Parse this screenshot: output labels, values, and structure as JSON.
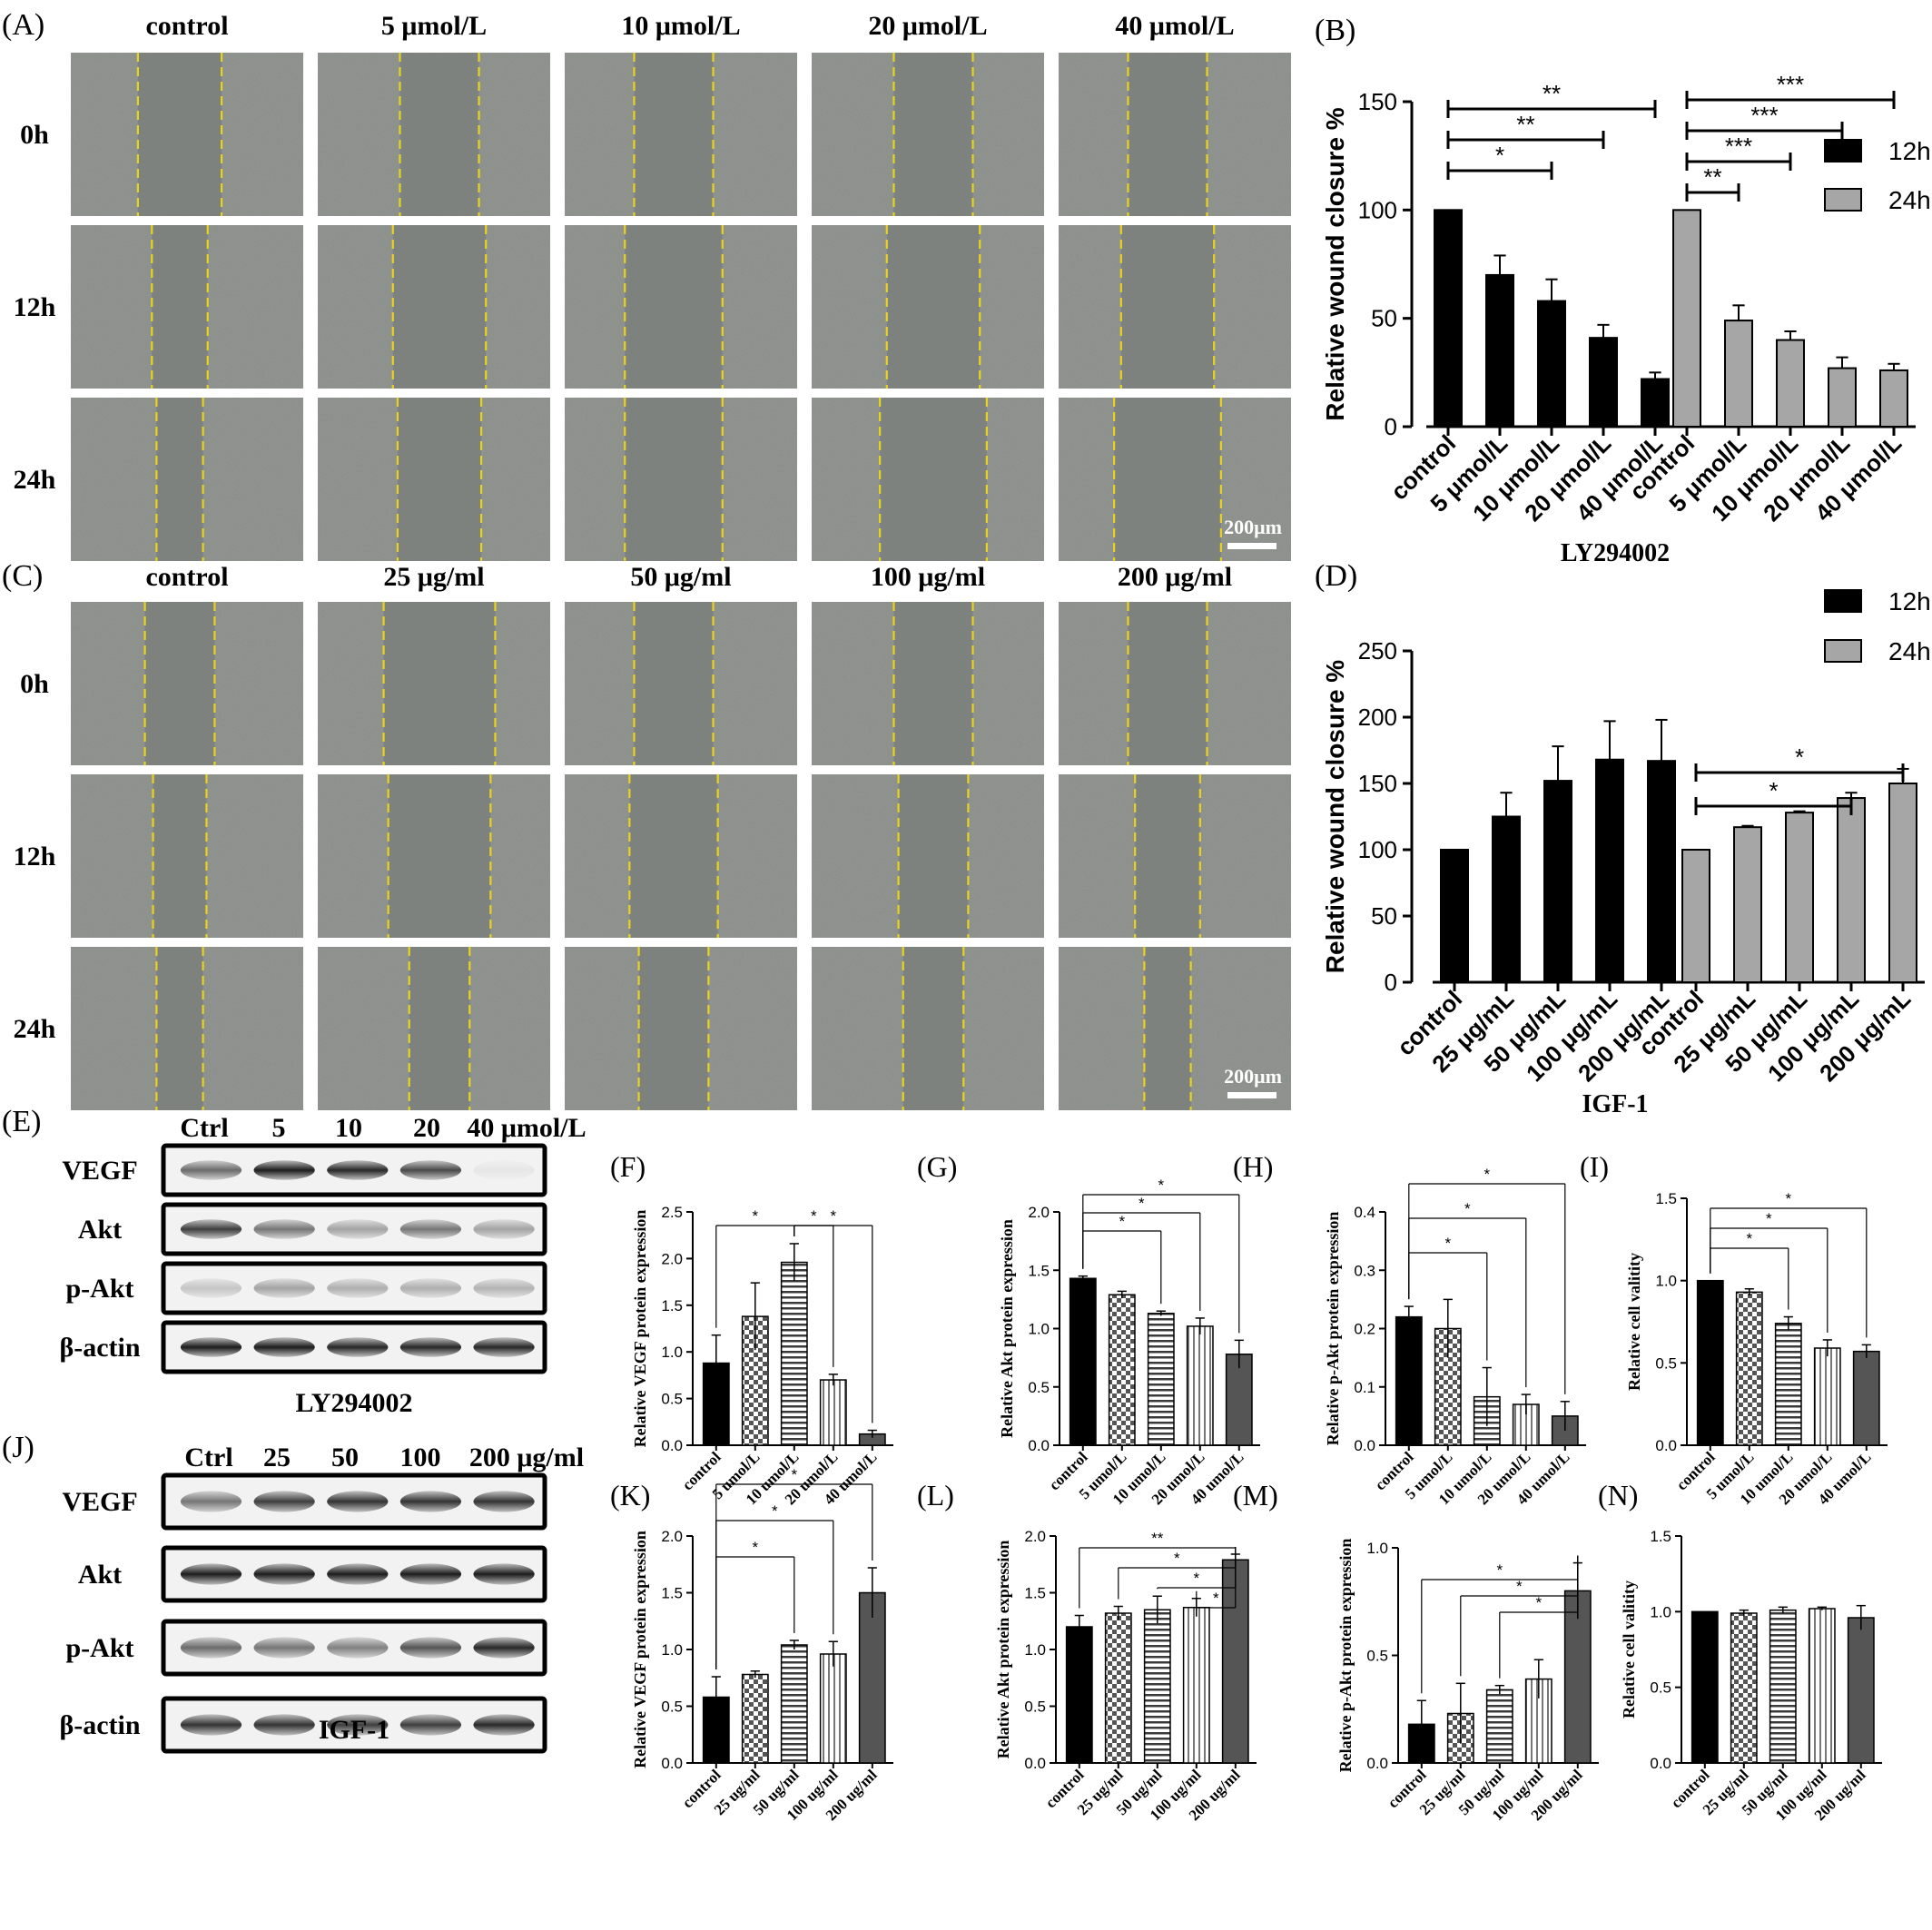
{
  "panel_letters": {
    "A": "(A)",
    "B": "(B)",
    "C": "(C)",
    "D": "(D)",
    "E": "(E)",
    "F": "(F)",
    "G": "(G)",
    "H": "(H)",
    "I": "(I)",
    "J": "(J)",
    "K": "(K)",
    "L": "(L)",
    "M": "(M)",
    "N": "(N)"
  },
  "micrograph_grids": [
    {
      "id": "A",
      "columns": [
        "control",
        "5 μmol/L",
        "10 μmol/L",
        "20 μmol/L",
        "40 μmol/L"
      ],
      "rows": [
        "0h",
        "12h",
        "24h"
      ],
      "scale_bar": "200μm"
    },
    {
      "id": "C",
      "columns": [
        "control",
        "25 μg/ml",
        "50 μg/ml",
        "100 μg/ml",
        "200 μg/ml"
      ],
      "rows": [
        "0h",
        "12h",
        "24h"
      ],
      "scale_bar": "200μm"
    }
  ],
  "blots": [
    {
      "id": "E",
      "columns": [
        "Ctrl",
        "5",
        "10",
        "20",
        "40 μmol/L"
      ],
      "rows": [
        "VEGF",
        "Akt",
        "p-Akt",
        "β-actin"
      ],
      "caption": "LY294002"
    },
    {
      "id": "J",
      "columns": [
        "Ctrl",
        "25",
        "50",
        "100",
        "200 μg/ml"
      ],
      "rows": [
        "VEGF",
        "Akt",
        "p-Akt",
        "β-actin"
      ],
      "caption": "IGF-1"
    }
  ],
  "chart_data": [
    {
      "id": "B",
      "type": "bar",
      "ylabel": "Relative wound closure %",
      "xlabel": "LY294002",
      "ylim": [
        0,
        150
      ],
      "yticks": [
        "0",
        "50",
        "100",
        "150"
      ],
      "categories": [
        "control",
        "5 μmol/L",
        "10 μmol/L",
        "20 μmol/L",
        "40 μmol/L"
      ],
      "legend": {
        "placement": "right",
        "entries": [
          "12h",
          "24h"
        ]
      },
      "series": [
        {
          "name": "12h",
          "color": "#000000",
          "values": [
            100,
            70,
            58,
            41,
            22
          ],
          "errors": [
            0,
            9,
            10,
            6,
            3
          ]
        },
        {
          "name": "24h",
          "color": "#a6a6a6",
          "values": [
            100,
            49,
            40,
            27,
            26
          ],
          "errors": [
            0,
            7,
            4,
            5,
            3
          ]
        }
      ],
      "significance": [
        {
          "series": "12h",
          "from": "control",
          "to": "10 μmol/L",
          "label": "*"
        },
        {
          "series": "12h",
          "from": "control",
          "to": "20 μmol/L",
          "label": "**"
        },
        {
          "series": "12h",
          "from": "control",
          "to": "40 μmol/L",
          "label": "**"
        },
        {
          "series": "24h",
          "from": "control",
          "to": "5 μmol/L",
          "label": "**"
        },
        {
          "series": "24h",
          "from": "control",
          "to": "10 μmol/L",
          "label": "***"
        },
        {
          "series": "24h",
          "from": "control",
          "to": "20 μmol/L",
          "label": "***"
        },
        {
          "series": "24h",
          "from": "control",
          "to": "40 μmol/L",
          "label": "***"
        }
      ]
    },
    {
      "id": "D",
      "type": "bar",
      "ylabel": "Relative wound closure %",
      "xlabel": "IGF-1",
      "ylim": [
        0,
        250
      ],
      "yticks": [
        "0",
        "50",
        "100",
        "150",
        "200",
        "250"
      ],
      "categories": [
        "control",
        "25 μg/mL",
        "50 μg/mL",
        "100 μg/mL",
        "200 μg/mL"
      ],
      "legend": {
        "placement": "top-right",
        "entries": [
          "12h",
          "24h"
        ]
      },
      "series": [
        {
          "name": "12h",
          "color": "#000000",
          "values": [
            100,
            125,
            152,
            168,
            167
          ],
          "errors": [
            0,
            18,
            26,
            29,
            31
          ]
        },
        {
          "name": "24h",
          "color": "#a6a6a6",
          "values": [
            100,
            117,
            128,
            139,
            150
          ],
          "errors": [
            0,
            1,
            1,
            4,
            11
          ]
        }
      ],
      "significance": [
        {
          "series": "24h",
          "from": "control",
          "to": "100 μg/mL",
          "label": "*"
        },
        {
          "series": "24h",
          "from": "control",
          "to": "200 μg/mL",
          "label": "*"
        }
      ]
    },
    {
      "id": "F",
      "type": "bar",
      "ylabel": "Relative VEGF protein expression",
      "ylim": [
        0,
        2.5
      ],
      "yticks": [
        "0.0",
        "0.5",
        "1.0",
        "1.5",
        "2.0",
        "2.5"
      ],
      "categories": [
        "control",
        "5 umol/L",
        "10 umol/L",
        "20 umol/L",
        "40 umol/L"
      ],
      "values": [
        0.88,
        1.38,
        1.96,
        0.7,
        0.12
      ],
      "errors": [
        0.3,
        0.36,
        0.2,
        0.06,
        0.04
      ],
      "significance": [
        {
          "from": "control",
          "to": "10 umol/L",
          "label": "*"
        },
        {
          "from": "10 umol/L",
          "to": "20 umol/L",
          "label": "*"
        },
        {
          "from": "10 umol/L",
          "to": "40 umol/L",
          "label": "*"
        }
      ]
    },
    {
      "id": "G",
      "type": "bar",
      "ylabel": "Relative Akt protein expression",
      "ylim": [
        0,
        2.0
      ],
      "yticks": [
        "0.0",
        "0.5",
        "1.0",
        "1.5",
        "2.0"
      ],
      "categories": [
        "control",
        "5 umol/L",
        "10 umol/L",
        "20 umol/L",
        "40 umol/L"
      ],
      "values": [
        1.43,
        1.29,
        1.13,
        1.02,
        0.78
      ],
      "errors": [
        0.02,
        0.03,
        0.02,
        0.07,
        0.12
      ],
      "significance": [
        {
          "from": "control",
          "to": "10 umol/L",
          "label": "*"
        },
        {
          "from": "control",
          "to": "20 umol/L",
          "label": "*"
        },
        {
          "from": "control",
          "to": "40 umol/L",
          "label": "*"
        }
      ]
    },
    {
      "id": "H",
      "type": "bar",
      "ylabel": "Relative p-Akt protein expression",
      "ylim": [
        0,
        0.4
      ],
      "yticks": [
        "0.0",
        "0.1",
        "0.2",
        "0.3",
        "0.4"
      ],
      "categories": [
        "control",
        "5 umol/L",
        "10 umol/L",
        "20 umol/L",
        "40 umol/L"
      ],
      "values": [
        0.22,
        0.2,
        0.083,
        0.07,
        0.05
      ],
      "errors": [
        0.018,
        0.05,
        0.05,
        0.017,
        0.025
      ],
      "significance": [
        {
          "from": "control",
          "to": "10 umol/L",
          "label": "*"
        },
        {
          "from": "control",
          "to": "20 umol/L",
          "label": "*"
        },
        {
          "from": "control",
          "to": "40 umol/L",
          "label": "*"
        }
      ]
    },
    {
      "id": "I",
      "type": "bar",
      "ylabel": "Relative cell valitity",
      "ylim": [
        0,
        1.5
      ],
      "yticks": [
        "0.0",
        "0.5",
        "1.0",
        "1.5"
      ],
      "categories": [
        "control",
        "5 umol/L",
        "10 umol/L",
        "20 umol/L",
        "40 umol/L"
      ],
      "values": [
        1.0,
        0.93,
        0.74,
        0.59,
        0.57
      ],
      "errors": [
        0,
        0.02,
        0.04,
        0.05,
        0.04
      ],
      "significance": [
        {
          "from": "control",
          "to": "10 umol/L",
          "label": "*"
        },
        {
          "from": "control",
          "to": "20 umol/L",
          "label": "*"
        },
        {
          "from": "control",
          "to": "40 umol/L",
          "label": "*"
        }
      ]
    },
    {
      "id": "K",
      "type": "bar",
      "ylabel": "Relative VEGF protein expression",
      "ylim": [
        0,
        2.0
      ],
      "yticks": [
        "0.0",
        "0.5",
        "1.0",
        "1.5",
        "2.0"
      ],
      "categories": [
        "control",
        "25 ug/ml",
        "50 ug/ml",
        "100 ug/ml",
        "200 ug/ml"
      ],
      "values": [
        0.58,
        0.78,
        1.04,
        0.96,
        1.5
      ],
      "errors": [
        0.18,
        0.03,
        0.04,
        0.11,
        0.22
      ],
      "significance": [
        {
          "from": "control",
          "to": "50 ug/ml",
          "label": "*"
        },
        {
          "from": "control",
          "to": "100 ug/ml",
          "label": "*"
        },
        {
          "from": "control",
          "to": "200 ug/ml",
          "label": "*"
        }
      ]
    },
    {
      "id": "L",
      "type": "bar",
      "ylabel": "Relative Akt protein expression",
      "ylim": [
        0,
        2.0
      ],
      "yticks": [
        "0.0",
        "0.5",
        "1.0",
        "1.5",
        "2.0"
      ],
      "categories": [
        "control",
        "25 ug/ml",
        "50 ug/ml",
        "100 ug/ml",
        "200 ug/ml"
      ],
      "values": [
        1.2,
        1.32,
        1.35,
        1.37,
        1.79
      ],
      "errors": [
        0.1,
        0.06,
        0.12,
        0.08,
        0.05
      ],
      "significance": [
        {
          "from": "control",
          "to": "200 ug/ml",
          "label": "**"
        },
        {
          "from": "25 ug/ml",
          "to": "200 ug/ml",
          "label": "*"
        },
        {
          "from": "50 ug/ml",
          "to": "200 ug/ml",
          "label": "*"
        },
        {
          "from": "100 ug/ml",
          "to": "200 ug/ml",
          "label": "*"
        }
      ]
    },
    {
      "id": "M",
      "type": "bar",
      "ylabel": "Relative p-Akt protein expression",
      "ylim": [
        0,
        1.0
      ],
      "yticks": [
        "0.0",
        "0.5",
        "1.0"
      ],
      "categories": [
        "control",
        "25 ug/ml",
        "50 ug/ml",
        "100 ug/ml",
        "200 ug/ml"
      ],
      "values": [
        0.18,
        0.23,
        0.34,
        0.39,
        0.8
      ],
      "errors": [
        0.11,
        0.14,
        0.02,
        0.09,
        0.13
      ],
      "significance": [
        {
          "from": "control",
          "to": "200 ug/ml",
          "label": "*"
        },
        {
          "from": "25 ug/ml",
          "to": "200 ug/ml",
          "label": "*"
        },
        {
          "from": "50 ug/ml",
          "to": "200 ug/ml",
          "label": "*"
        }
      ]
    },
    {
      "id": "N",
      "type": "bar",
      "ylabel": "Relative cell valitity",
      "ylim": [
        0,
        1.5
      ],
      "yticks": [
        "0.0",
        "0.5",
        "1.0",
        "1.5"
      ],
      "categories": [
        "control",
        "25 ug/ml",
        "50 ug/ml",
        "100 ug/ml",
        "200 ug/ml"
      ],
      "values": [
        1.0,
        0.99,
        1.01,
        1.02,
        0.96
      ],
      "errors": [
        0,
        0.02,
        0.02,
        0.01,
        0.08
      ],
      "significance": []
    }
  ]
}
